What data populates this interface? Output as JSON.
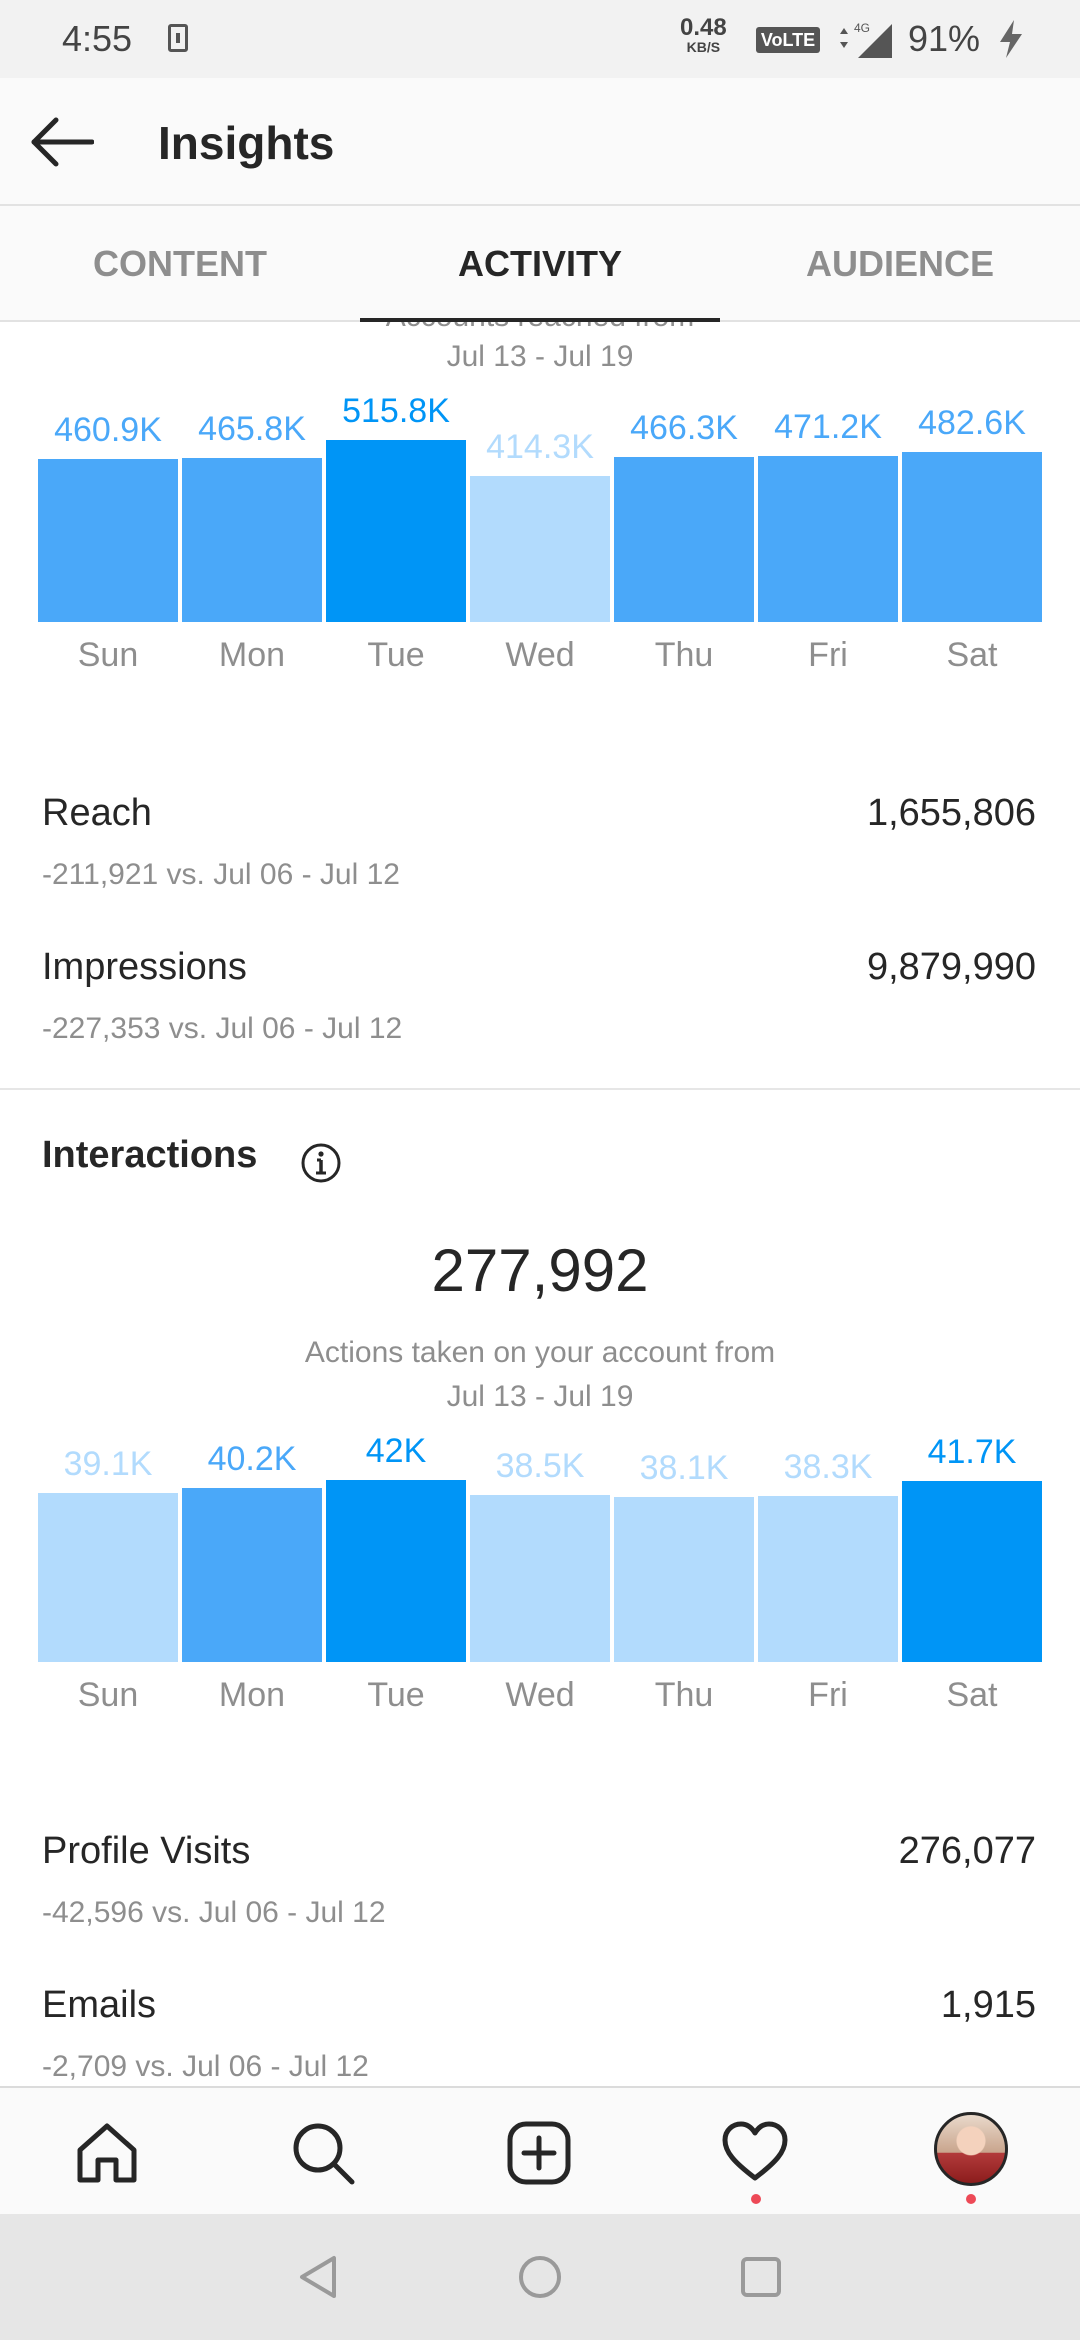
{
  "status_bar": {
    "time": "4:55",
    "net_speed_value": "0.48",
    "net_speed_unit": "KB/S",
    "volte": "VoLTE",
    "network": "4G",
    "battery": "91%"
  },
  "header": {
    "title": "Insights"
  },
  "tabs": [
    {
      "label": "CONTENT",
      "active": false
    },
    {
      "label": "ACTIVITY",
      "active": true
    },
    {
      "label": "AUDIENCE",
      "active": false
    }
  ],
  "reach_section": {
    "partial_heading": "Accounts reached from",
    "date_range": "Jul 13 - Jul 19"
  },
  "colors": {
    "highlight": "#0095f6",
    "normal": "#4aa8f9",
    "low": "#b2dbfd"
  },
  "chart_data": [
    {
      "type": "bar",
      "categories": [
        "Sun",
        "Mon",
        "Tue",
        "Wed",
        "Thu",
        "Fri",
        "Sat"
      ],
      "values": [
        460.9,
        465.8,
        515.8,
        414.3,
        466.3,
        471.2,
        482.6
      ],
      "labels": [
        "460.9K",
        "465.8K",
        "515.8K",
        "414.3K",
        "466.3K",
        "471.2K",
        "482.6K"
      ],
      "emphasis": [
        "normal",
        "normal",
        "highlight",
        "low",
        "normal",
        "normal",
        "normal"
      ],
      "ylim": [
        0,
        515.8
      ]
    },
    {
      "type": "bar",
      "categories": [
        "Sun",
        "Mon",
        "Tue",
        "Wed",
        "Thu",
        "Fri",
        "Sat"
      ],
      "values": [
        39.1,
        40.2,
        42,
        38.5,
        38.1,
        38.3,
        41.7
      ],
      "labels": [
        "39.1K",
        "40.2K",
        "42K",
        "38.5K",
        "38.1K",
        "38.3K",
        "41.7K"
      ],
      "emphasis": [
        "low",
        "normal",
        "highlight",
        "low",
        "low",
        "low",
        "highlight"
      ],
      "ylim": [
        0,
        42
      ]
    }
  ],
  "metrics_reach": [
    {
      "name": "Reach",
      "value": "1,655,806",
      "comparison": "-211,921 vs. Jul 06 - Jul 12"
    },
    {
      "name": "Impressions",
      "value": "9,879,990",
      "comparison": "-227,353 vs. Jul 06 - Jul 12"
    }
  ],
  "interactions": {
    "title": "Interactions",
    "total": "277,992",
    "description_line1": "Actions taken on your account from",
    "description_line2": "Jul 13 - Jul 19"
  },
  "metrics_interactions": [
    {
      "name": "Profile Visits",
      "value": "276,077",
      "comparison": "-42,596 vs. Jul 06 - Jul 12"
    },
    {
      "name": "Emails",
      "value": "1,915",
      "comparison": "-2,709 vs. Jul 06 - Jul 12"
    }
  ],
  "bottom_nav": [
    "home-icon",
    "search-icon",
    "new-post-icon",
    "activity-heart-icon",
    "profile-avatar"
  ]
}
